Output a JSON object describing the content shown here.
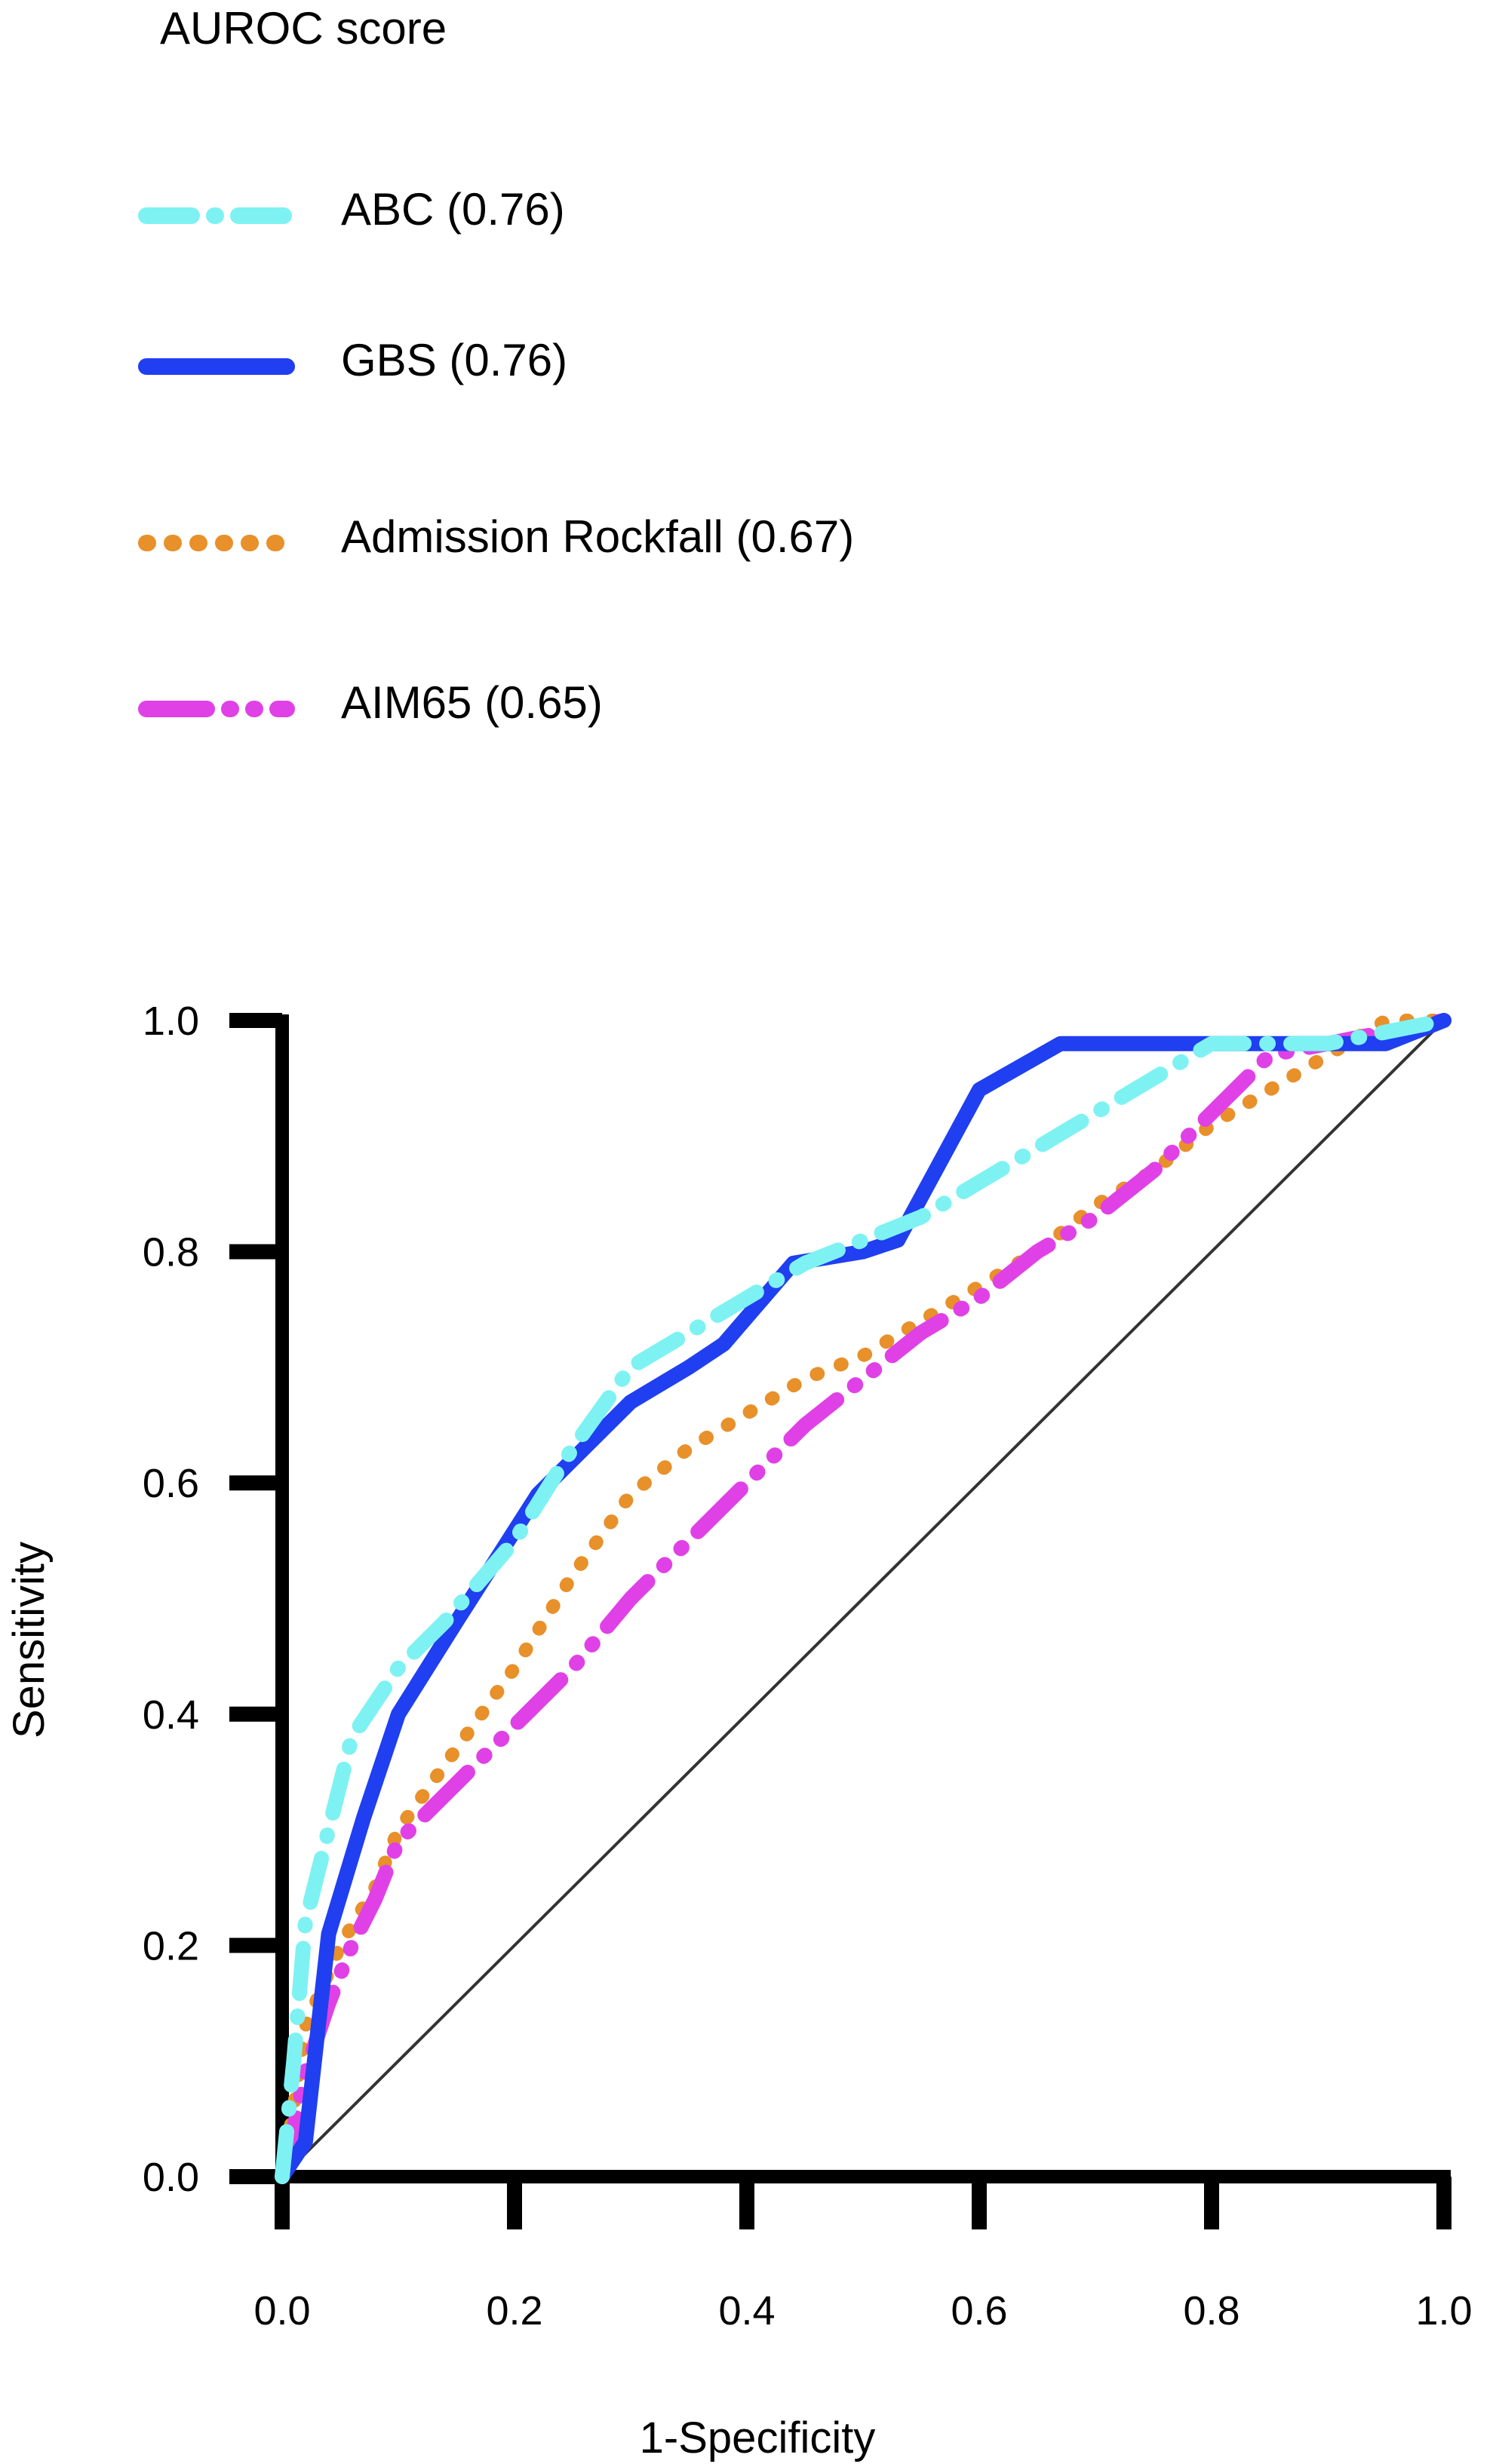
{
  "chart_data": {
    "type": "line",
    "title": "",
    "xlabel": "1-Specificity",
    "ylabel": "Sensitivity",
    "xlim": [
      0,
      1
    ],
    "ylim": [
      0,
      1
    ],
    "xticks": [
      "0.0",
      "0.2",
      "0.4",
      "0.6",
      "0.8",
      "1.0"
    ],
    "yticks": [
      "0.0",
      "0.2",
      "0.4",
      "0.6",
      "0.8",
      "1.0"
    ],
    "grid": false,
    "legend": {
      "title": "AUROC score",
      "placement": "top-left, above plot"
    },
    "reference_line": {
      "x": [
        0,
        1
      ],
      "y": [
        0,
        1
      ],
      "color": "#333333"
    },
    "series": [
      {
        "name": "ABC (0.76)",
        "color": "#7ef2f2",
        "style": "dash-dot",
        "x": [
          0,
          0.01,
          0.02,
          0.04,
          0.06,
          0.1,
          0.14,
          0.2,
          0.25,
          0.3,
          0.35,
          0.4,
          0.45,
          0.5,
          0.55,
          0.6,
          0.65,
          0.7,
          0.75,
          0.8,
          0.85,
          0.9,
          1.0
        ],
        "y": [
          0,
          0.1,
          0.22,
          0.3,
          0.38,
          0.44,
          0.48,
          0.55,
          0.63,
          0.7,
          0.73,
          0.76,
          0.79,
          0.81,
          0.83,
          0.86,
          0.89,
          0.92,
          0.95,
          0.98,
          0.98,
          0.98,
          1.0
        ]
      },
      {
        "name": "GBS (0.76)",
        "color": "#1f3ff0",
        "style": "solid",
        "x": [
          0,
          0.02,
          0.03,
          0.04,
          0.07,
          0.1,
          0.15,
          0.22,
          0.3,
          0.35,
          0.38,
          0.44,
          0.5,
          0.53,
          0.6,
          0.67,
          0.75,
          0.8,
          0.9,
          0.95,
          1.0
        ],
        "y": [
          0,
          0.03,
          0.12,
          0.21,
          0.31,
          0.4,
          0.48,
          0.59,
          0.67,
          0.7,
          0.72,
          0.79,
          0.8,
          0.81,
          0.94,
          0.98,
          0.98,
          0.98,
          0.98,
          0.98,
          1.0
        ]
      },
      {
        "name": "Admission Rockfall (0.67)",
        "color": "#e8902a",
        "style": "dotted",
        "x": [
          0,
          0.01,
          0.02,
          0.05,
          0.08,
          0.1,
          0.15,
          0.2,
          0.25,
          0.3,
          0.35,
          0.4,
          0.45,
          0.5,
          0.55,
          0.6,
          0.65,
          0.7,
          0.75,
          0.8,
          0.85,
          0.9,
          0.95,
          1.0
        ],
        "y": [
          0,
          0.06,
          0.13,
          0.2,
          0.25,
          0.3,
          0.37,
          0.44,
          0.52,
          0.59,
          0.63,
          0.66,
          0.69,
          0.71,
          0.74,
          0.77,
          0.8,
          0.84,
          0.87,
          0.91,
          0.94,
          0.97,
          1.0,
          1.0
        ]
      },
      {
        "name": "AIM65 (0.65)",
        "color": "#e041e6",
        "style": "long-dash-dot",
        "x": [
          0,
          0.01,
          0.02,
          0.04,
          0.06,
          0.08,
          0.1,
          0.15,
          0.2,
          0.25,
          0.3,
          0.35,
          0.4,
          0.45,
          0.5,
          0.55,
          0.6,
          0.65,
          0.7,
          0.75,
          0.8,
          0.85,
          0.9,
          0.95,
          1.0
        ],
        "y": [
          0,
          0.04,
          0.09,
          0.15,
          0.2,
          0.24,
          0.29,
          0.34,
          0.39,
          0.44,
          0.5,
          0.55,
          0.6,
          0.65,
          0.69,
          0.73,
          0.76,
          0.8,
          0.83,
          0.87,
          0.92,
          0.97,
          0.98,
          0.99,
          1.0
        ]
      }
    ]
  }
}
